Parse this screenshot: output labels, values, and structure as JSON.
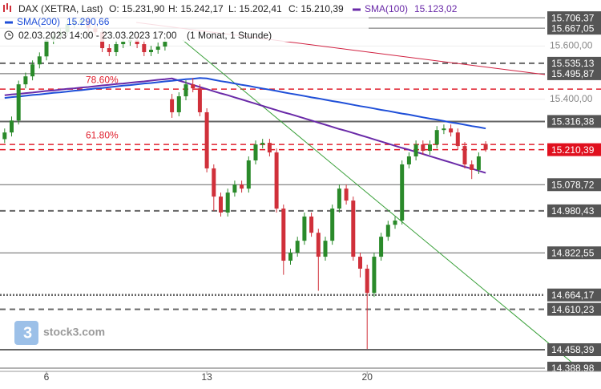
{
  "chart_data": {
    "type": "candlestick",
    "header": {
      "title": "DAX (XETRA, Last)",
      "open": "O: 15.231,90",
      "high": "H: 15.242,17",
      "low": "L: 15.202,41",
      "close": "C: 15.210,39",
      "period": "02.03.2023 14:00 - 23.03.2023 17:00",
      "interval": "(1 Monat, 1 Stunde)"
    },
    "watermark": "stock3.com",
    "ylim": [
      14377,
      15773
    ],
    "yticks": [
      {
        "value": 15600,
        "label": "15.600,00"
      },
      {
        "value": 15400,
        "label": "15.400,00"
      }
    ],
    "up_color": "#2a8a2a",
    "down_color": "#d0303a",
    "categories": [
      null,
      null,
      null,
      null,
      null,
      null,
      "6",
      null,
      null,
      null,
      null,
      null,
      null,
      null,
      null,
      null,
      null,
      null,
      null,
      null,
      null,
      null,
      null,
      null,
      null,
      null,
      null,
      null,
      null,
      "13",
      null,
      null,
      null,
      null,
      null,
      null,
      null,
      null,
      null,
      null,
      null,
      null,
      null,
      null,
      null,
      null,
      null,
      null,
      null,
      null,
      null,
      null,
      "20",
      null,
      null,
      null,
      null,
      null,
      null,
      null,
      null,
      null,
      null,
      null,
      null,
      null,
      null,
      null,
      null,
      null
    ],
    "candles": [
      [
        15250,
        15290,
        15235,
        15275
      ],
      [
        15275,
        15335,
        15260,
        15320
      ],
      [
        15320,
        15470,
        15305,
        15456
      ],
      [
        15456,
        15500,
        15441,
        15486
      ],
      [
        15486,
        15546,
        15471,
        15531
      ],
      [
        15531,
        15576,
        15516,
        15561
      ],
      [
        15561,
        15637,
        15546,
        15622
      ],
      [
        15622,
        15652,
        15607,
        15637
      ],
      [
        15637,
        15667,
        15622,
        15652
      ],
      [
        15652,
        15697,
        15637,
        15682
      ],
      [
        15682,
        15703,
        15667,
        15688
      ],
      [
        15688,
        15706,
        15673,
        15697
      ],
      [
        15697,
        15712,
        15652,
        15667
      ],
      [
        15667,
        15682,
        15637,
        15652
      ],
      [
        15652,
        15667,
        15577,
        15592
      ],
      [
        15592,
        15607,
        15562,
        15577
      ],
      [
        15577,
        15622,
        15562,
        15607
      ],
      [
        15607,
        15631,
        15592,
        15616
      ],
      [
        15616,
        15637,
        15601,
        15622
      ],
      [
        15622,
        15637,
        15592,
        15607
      ],
      [
        15607,
        15622,
        15562,
        15577
      ],
      [
        15577,
        15601,
        15562,
        15586
      ],
      [
        15586,
        15613,
        15571,
        15598
      ],
      [
        15598,
        15631,
        15583,
        15616
      ],
      [
        15400,
        15420,
        15330,
        15351
      ],
      [
        15351,
        15426,
        15336,
        15411
      ],
      [
        15411,
        15471,
        15396,
        15456
      ],
      [
        15456,
        15480,
        15426,
        15441
      ],
      [
        15441,
        15456,
        15336,
        15351
      ],
      [
        15351,
        15366,
        15125,
        15140
      ],
      [
        15140,
        15155,
        14980,
        15034
      ],
      [
        15034,
        15049,
        14959,
        14974
      ],
      [
        14974,
        15064,
        14959,
        15049
      ],
      [
        15049,
        15094,
        15034,
        15079
      ],
      [
        15079,
        15094,
        15049,
        15064
      ],
      [
        15064,
        15185,
        15049,
        15170
      ],
      [
        15170,
        15245,
        15155,
        15230
      ],
      [
        15230,
        15251,
        15215,
        15236
      ],
      [
        15236,
        15251,
        15185,
        15200
      ],
      [
        15200,
        15215,
        14974,
        14989
      ],
      [
        14989,
        15004,
        14740,
        14793
      ],
      [
        14793,
        14838,
        14778,
        14823
      ],
      [
        14823,
        14883,
        14808,
        14868
      ],
      [
        14868,
        14974,
        14853,
        14959
      ],
      [
        14959,
        14974,
        14883,
        14898
      ],
      [
        14898,
        14913,
        14680,
        14808
      ],
      [
        14808,
        14883,
        14793,
        14868
      ],
      [
        14868,
        15004,
        14853,
        14989
      ],
      [
        14989,
        15079,
        14974,
        15064
      ],
      [
        15064,
        15079,
        15004,
        15019
      ],
      [
        15019,
        15034,
        14793,
        14808
      ],
      [
        14808,
        14823,
        14730,
        14763
      ],
      [
        14763,
        14778,
        14461,
        14672
      ],
      [
        14672,
        14823,
        14657,
        14808
      ],
      [
        14808,
        14898,
        14793,
        14883
      ],
      [
        14883,
        14943,
        14868,
        14928
      ],
      [
        14928,
        14959,
        14913,
        14944
      ],
      [
        14944,
        15170,
        14929,
        15155
      ],
      [
        15155,
        15200,
        15140,
        15185
      ],
      [
        15185,
        15245,
        15170,
        15230
      ],
      [
        15230,
        15245,
        15191,
        15206
      ],
      [
        15206,
        15245,
        15191,
        15230
      ],
      [
        15230,
        15299,
        15215,
        15284
      ],
      [
        15284,
        15305,
        15269,
        15290
      ],
      [
        15290,
        15305,
        15260,
        15275
      ],
      [
        15275,
        15290,
        15209,
        15224
      ],
      [
        15224,
        15239,
        15140,
        15155
      ],
      [
        15155,
        15170,
        15100,
        15134
      ],
      [
        15134,
        15200,
        15119,
        15185
      ],
      [
        15231.9,
        15242.17,
        15202.41,
        15210.39
      ]
    ],
    "series": [
      {
        "name": "SMA(100)",
        "color": "#6a2aa8",
        "legend_value": "15.123,02",
        "values": [
          15415,
          15418,
          15420,
          15423,
          15425,
          15428,
          15431,
          15433,
          15436,
          15439,
          15441,
          15444,
          15446,
          15449,
          15452,
          15454,
          15457,
          15459,
          15462,
          15465,
          15467,
          15470,
          15473,
          15475,
          15478,
          15470,
          15462,
          15454,
          15446,
          15438,
          15430,
          15422,
          15415,
          15407,
          15399,
          15391,
          15383,
          15375,
          15367,
          15359,
          15351,
          15344,
          15336,
          15328,
          15320,
          15312,
          15304,
          15296,
          15288,
          15281,
          15273,
          15265,
          15257,
          15249,
          15241,
          15233,
          15225,
          15217,
          15210,
          15202,
          15194,
          15186,
          15178,
          15170,
          15162,
          15154,
          15146,
          15139,
          15131,
          15123
        ]
      },
      {
        "name": "SMA(200)",
        "color": "#1f4fd8",
        "legend_value": "15.290,66",
        "values": [
          15405,
          15408,
          15410,
          15413,
          15416,
          15418,
          15421,
          15424,
          15426,
          15429,
          15432,
          15434,
          15437,
          15440,
          15442,
          15445,
          15448,
          15451,
          15453,
          15456,
          15459,
          15461,
          15464,
          15467,
          15469,
          15472,
          15475,
          15477,
          15480,
          15478,
          15473,
          15468,
          15464,
          15459,
          15454,
          15450,
          15445,
          15440,
          15436,
          15431,
          15426,
          15421,
          15417,
          15412,
          15407,
          15403,
          15398,
          15393,
          15389,
          15384,
          15379,
          15374,
          15370,
          15365,
          15360,
          15356,
          15351,
          15346,
          15342,
          15337,
          15332,
          15327,
          15323,
          15318,
          15313,
          15309,
          15304,
          15299,
          15295,
          15290
        ]
      }
    ],
    "price_levels": [
      {
        "value": 15706.37,
        "label": "15.706,37",
        "style": "solid"
      },
      {
        "value": 15667.05,
        "label": "15.667,05",
        "style": "solid"
      },
      {
        "value": 15535.13,
        "label": "15.535,13",
        "style": "dashed"
      },
      {
        "value": 15495.87,
        "label": "15.495,87",
        "style": "solid"
      },
      {
        "value": 15316.38,
        "label": "15.316,38",
        "style": "thick"
      },
      {
        "value": 15078.72,
        "label": "15.078,72",
        "style": "solid"
      },
      {
        "value": 14980.43,
        "label": "14.980,43",
        "style": "dashed"
      },
      {
        "value": 14822.55,
        "label": "14.822,55",
        "style": "solid"
      },
      {
        "value": 14664.17,
        "label": "14.664,17",
        "style": "dotted"
      },
      {
        "value": 14610.23,
        "label": "14.610,23",
        "style": "dashed"
      },
      {
        "value": 14458.39,
        "label": "14.458,39",
        "style": "thick"
      },
      {
        "value": 14388.98,
        "label": "14.388,98",
        "style": "solid"
      }
    ],
    "current_price": {
      "value": 15210.39,
      "label": "15.210,39",
      "color": "#e0101e"
    },
    "fib_levels": [
      {
        "value": 15438,
        "label": "78.60%"
      },
      {
        "value": 15230,
        "label": "61.80%"
      }
    ]
  }
}
